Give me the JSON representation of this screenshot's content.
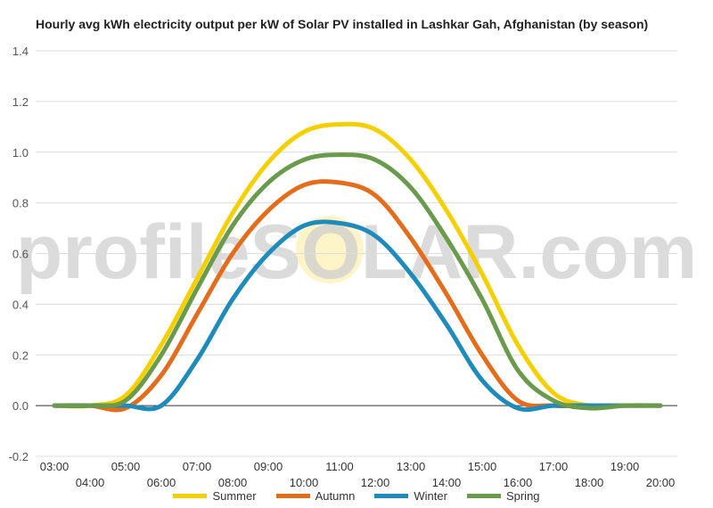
{
  "chart_data": {
    "type": "line",
    "title": "Hourly avg kWh electricity output per kW of Solar PV installed in Lashkar Gah, Afghanistan (by season)",
    "watermark": "profileSOLAR.com",
    "x_labels_top": [
      "03:00",
      "05:00",
      "07:00",
      "09:00",
      "11:00",
      "13:00",
      "15:00",
      "17:00",
      "19:00"
    ],
    "x_labels_bottom": [
      "04:00",
      "06:00",
      "08:00",
      "10:00",
      "12:00",
      "14:00",
      "16:00",
      "18:00",
      "20:00"
    ],
    "y_ticks": [
      "-0.2",
      "0.0",
      "0.2",
      "0.4",
      "0.6",
      "0.8",
      "1.0",
      "1.2",
      "1.4"
    ],
    "ylim": [
      -0.2,
      1.4
    ],
    "x": [
      3,
      4,
      5,
      6,
      7,
      8,
      9,
      10,
      11,
      12,
      13,
      14,
      15,
      16,
      17,
      18,
      19,
      20
    ],
    "series": [
      {
        "name": "Summer",
        "color": "#f5d000",
        "values": [
          0,
          0,
          0.04,
          0.24,
          0.5,
          0.76,
          0.96,
          1.08,
          1.11,
          1.09,
          0.97,
          0.77,
          0.52,
          0.24,
          0.05,
          0.0,
          0,
          0
        ]
      },
      {
        "name": "Autumn",
        "color": "#e46d1c",
        "values": [
          0,
          0,
          -0.01,
          0.12,
          0.36,
          0.6,
          0.77,
          0.87,
          0.88,
          0.83,
          0.66,
          0.44,
          0.2,
          0.02,
          0,
          0,
          0,
          0
        ]
      },
      {
        "name": "Winter",
        "color": "#1f8bbb",
        "values": [
          0,
          0,
          0,
          0,
          0.18,
          0.42,
          0.6,
          0.71,
          0.72,
          0.67,
          0.52,
          0.32,
          0.1,
          -0.01,
          0,
          0,
          0,
          0
        ]
      },
      {
        "name": "Spring",
        "color": "#6a9a4c",
        "values": [
          0,
          0,
          0.02,
          0.2,
          0.46,
          0.71,
          0.88,
          0.97,
          0.99,
          0.97,
          0.86,
          0.66,
          0.42,
          0.14,
          0.02,
          -0.01,
          0,
          0
        ]
      }
    ]
  }
}
